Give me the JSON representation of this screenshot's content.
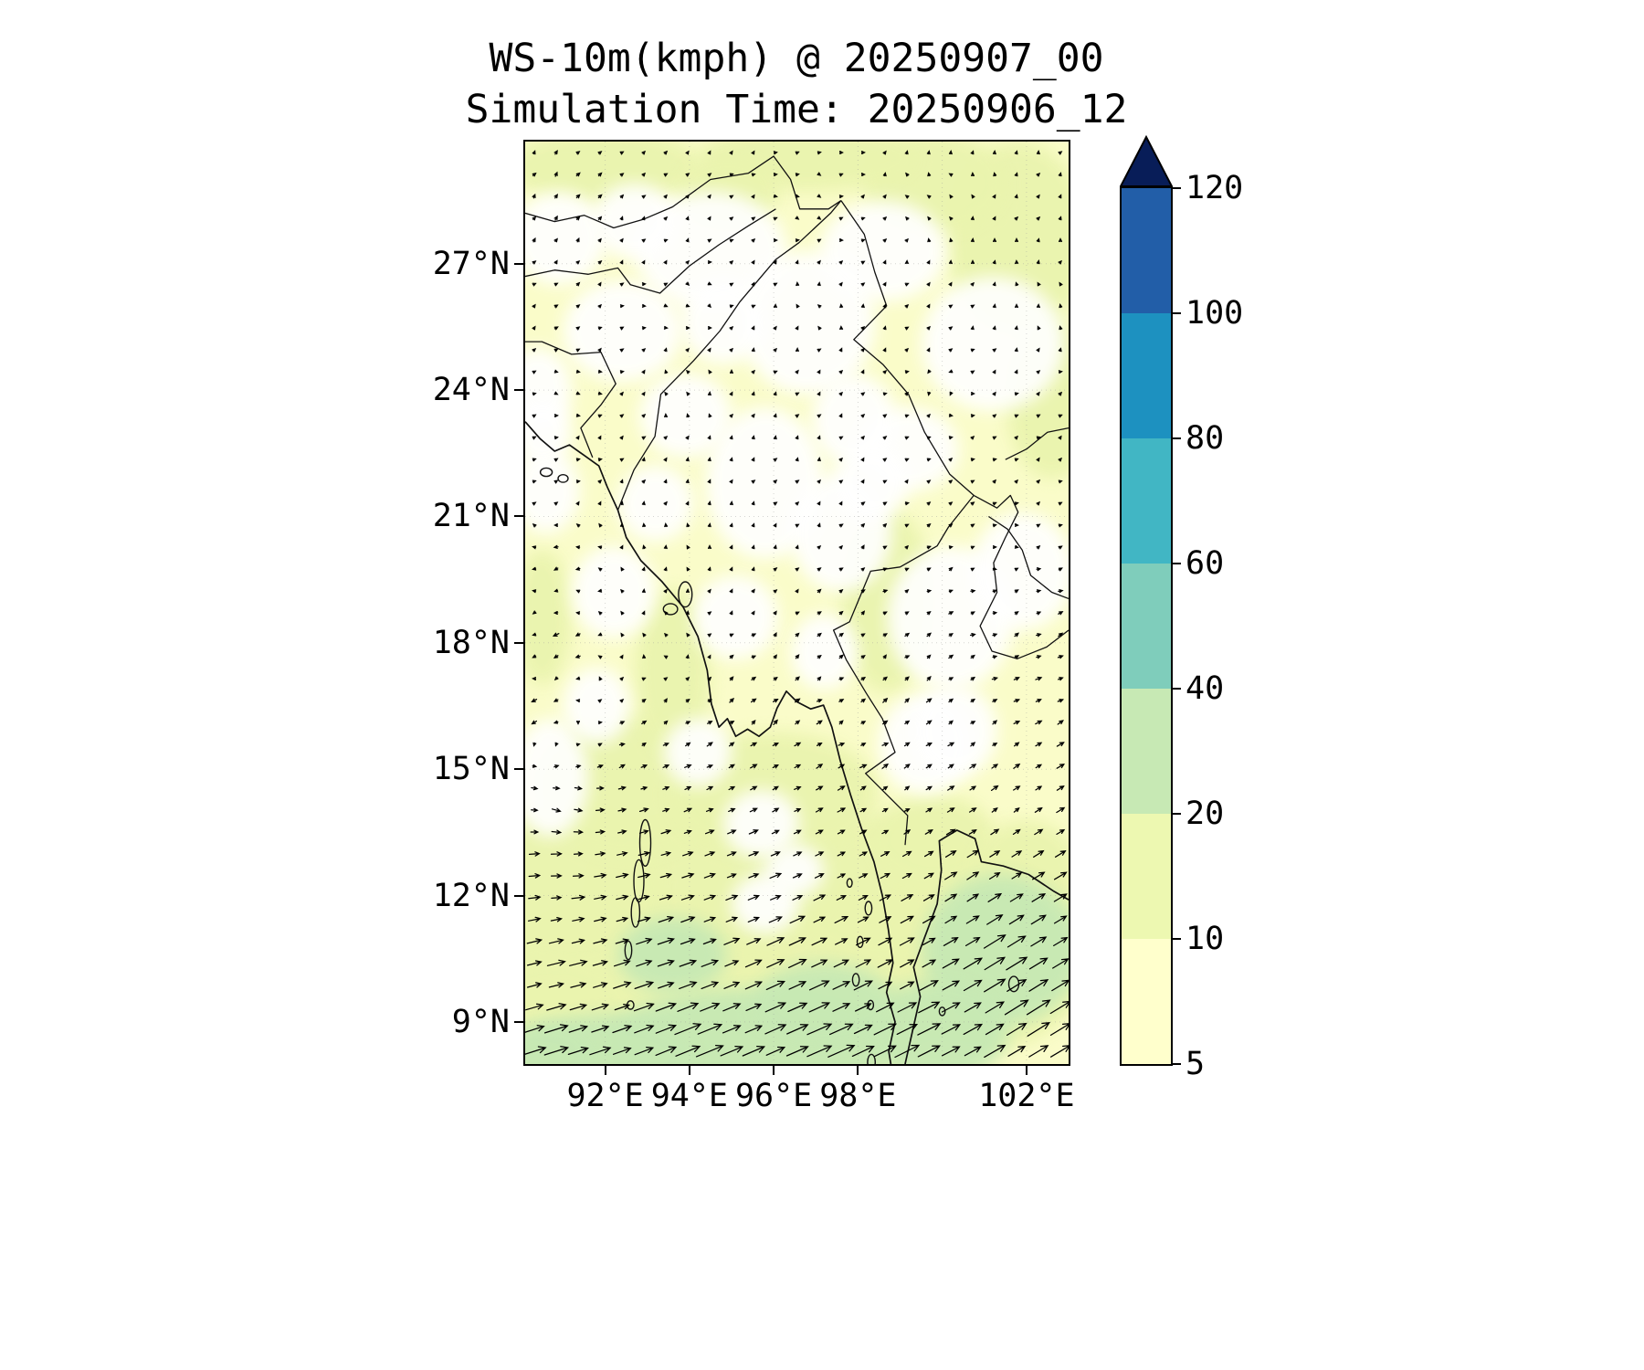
{
  "figure": {
    "title_line1": "WS-10m(kmph) @ 20250907_00",
    "title_line2": "Simulation Time: 20250906_12"
  },
  "chart_data": {
    "type": "heatmap",
    "subtype": "filled-contour map with wind quiver overlay",
    "title": "WS-10m(kmph) @ 20250907_00",
    "subtitle": "Simulation Time: 20250906_12",
    "variable": "10 m wind speed",
    "units": "kmph",
    "valid_time_label": "20250907_00",
    "simulation_time_label": "20250906_12",
    "lon_range": [
      90.1,
      103.0
    ],
    "lat_range": [
      8.0,
      29.9
    ],
    "grid_on": true,
    "grid_lons": [
      92,
      94,
      96,
      98,
      100,
      102
    ],
    "grid_lats": [
      27,
      24,
      21,
      18,
      15,
      12,
      9
    ],
    "x_ticks": [
      {
        "lon": 92,
        "label": "92°E"
      },
      {
        "lon": 94,
        "label": "94°E"
      },
      {
        "lon": 96,
        "label": "96°E"
      },
      {
        "lon": 98,
        "label": "98°E"
      },
      {
        "lon": 102,
        "label": "102°E"
      }
    ],
    "y_ticks": [
      {
        "lat": 27,
        "label": "27°N"
      },
      {
        "lat": 24,
        "label": "24°N"
      },
      {
        "lat": 21,
        "label": "21°N"
      },
      {
        "lat": 18,
        "label": "18°N"
      },
      {
        "lat": 15,
        "label": "15°N"
      },
      {
        "lat": 12,
        "label": "12°N"
      },
      {
        "lat": 9,
        "label": "9°N"
      }
    ],
    "colorbar": {
      "orientation": "vertical",
      "levels": [
        5,
        10,
        20,
        40,
        60,
        80,
        100,
        120
      ],
      "tick_labels": [
        "5",
        "10",
        "20",
        "40",
        "60",
        "80",
        "100",
        "120"
      ],
      "segment_colors_bottom_to_top": [
        "#ffffcc",
        "#edf8b1",
        "#c7e9b4",
        "#7fcdbb",
        "#41b6c4",
        "#1d91c0",
        "#225ea8"
      ],
      "extend_above_color": "#081d58",
      "extend": "max"
    },
    "level_colors": {
      "calm": "#ffffff",
      "base": "#fafcc9",
      "10-20": "#eaf4ae",
      "20-40": "#c7e9b4"
    },
    "wind_vectors_sample": [
      [
        91,
        8.3,
        19,
        6
      ],
      [
        94,
        8.3,
        22,
        9
      ],
      [
        97,
        8.5,
        23,
        10
      ],
      [
        99.5,
        8.8,
        20,
        10
      ],
      [
        102,
        9.3,
        19,
        12
      ],
      [
        91,
        10.3,
        13,
        3
      ],
      [
        93.5,
        10.4,
        15,
        5
      ],
      [
        96.5,
        10.4,
        15,
        7
      ],
      [
        99,
        10.4,
        11,
        6
      ],
      [
        101.5,
        10.8,
        16,
        10
      ],
      [
        91,
        12.4,
        9,
        0
      ],
      [
        93,
        12.7,
        9,
        2
      ],
      [
        95.5,
        12.4,
        8,
        3
      ],
      [
        98,
        12.4,
        6,
        3
      ],
      [
        100.7,
        12.2,
        9,
        6
      ],
      [
        91,
        14,
        6,
        -2
      ],
      [
        94,
        14,
        5,
        2
      ],
      [
        96.5,
        14,
        4,
        2
      ],
      [
        99,
        14,
        3,
        2
      ],
      [
        101.5,
        14,
        4,
        3
      ],
      [
        90.5,
        16.3,
        -5,
        -2
      ],
      [
        93,
        16,
        3,
        2
      ],
      [
        95.5,
        16,
        3,
        3
      ],
      [
        98,
        16,
        3,
        2
      ],
      [
        101,
        16,
        3,
        2
      ],
      [
        91,
        18,
        -5,
        -2
      ],
      [
        93.5,
        18,
        -2,
        1
      ],
      [
        96,
        18,
        2,
        2
      ],
      [
        98.5,
        18,
        2,
        2
      ],
      [
        101,
        18,
        3,
        1
      ],
      [
        91,
        20,
        -4,
        -1
      ],
      [
        94,
        20,
        -1,
        2
      ],
      [
        96.5,
        20,
        1,
        2
      ],
      [
        99,
        20,
        2,
        1
      ],
      [
        101.5,
        20,
        2,
        0
      ],
      [
        91,
        22,
        2,
        1
      ],
      [
        94,
        22,
        0,
        2
      ],
      [
        97,
        22,
        1,
        2
      ],
      [
        100,
        22,
        2,
        1
      ],
      [
        102.5,
        22,
        1,
        1
      ],
      [
        91,
        24,
        1,
        -1
      ],
      [
        94,
        24,
        -1,
        1
      ],
      [
        97,
        24,
        1,
        1
      ],
      [
        100,
        24,
        -1,
        -1
      ],
      [
        102.5,
        24,
        2,
        1
      ],
      [
        91,
        26,
        2,
        2
      ],
      [
        94,
        26,
        1,
        -1
      ],
      [
        97,
        26,
        -1,
        1
      ],
      [
        100,
        26,
        1,
        1
      ],
      [
        102.5,
        26,
        -1,
        2
      ],
      [
        91,
        28.5,
        2,
        3
      ],
      [
        94,
        28.5,
        1,
        2
      ],
      [
        97,
        28.5,
        2,
        -1
      ],
      [
        100,
        28.5,
        -2,
        1
      ],
      [
        102.5,
        28.5,
        1,
        2
      ]
    ],
    "shading_blobs": [
      [
        93,
        9.8,
        3.6,
        2.3,
        "10-20"
      ],
      [
        97,
        9.8,
        3.2,
        2.3,
        "10-20"
      ],
      [
        100.9,
        10.6,
        2.7,
        2.3,
        "10-20"
      ],
      [
        94.5,
        12.3,
        2.9,
        1.7,
        "10-20"
      ],
      [
        98.5,
        12.2,
        2.3,
        1.7,
        "10-20"
      ],
      [
        91.2,
        12.2,
        2.1,
        2.0,
        "10-20"
      ],
      [
        92.6,
        14.6,
        2.3,
        1.7,
        "10-20"
      ],
      [
        96,
        14.4,
        2.5,
        1.5,
        "10-20"
      ],
      [
        99.8,
        13.3,
        1.5,
        1.1,
        "10-20"
      ],
      [
        90.8,
        9,
        2,
        1.6,
        "10-20"
      ],
      [
        102,
        12.5,
        1.3,
        1.3,
        "10-20"
      ],
      [
        101.8,
        27.6,
        1.7,
        2.3,
        "10-20"
      ],
      [
        102.6,
        23.8,
        1.1,
        1.9,
        "10-20"
      ],
      [
        99.8,
        28.9,
        1.7,
        1.2,
        "10-20"
      ],
      [
        92,
        29.3,
        2.3,
        0.9,
        "10-20"
      ],
      [
        96.8,
        29.5,
        2.6,
        0.8,
        "10-20"
      ],
      [
        94.9,
        28.7,
        1.2,
        0.9,
        "10-20"
      ],
      [
        98.7,
        19,
        1.1,
        2.2,
        "10-20"
      ],
      [
        93.6,
        17.3,
        0.9,
        2.0,
        "10-20"
      ],
      [
        90.5,
        18.6,
        0.7,
        1.6,
        "10-20"
      ],
      [
        95.5,
        8.5,
        3.5,
        1.3,
        "20-40"
      ],
      [
        92,
        8.2,
        2.1,
        1.0,
        "20-40"
      ],
      [
        101.4,
        10.7,
        1.9,
        1.8,
        "20-40"
      ],
      [
        99.9,
        8.8,
        1.7,
        1.2,
        "20-40"
      ],
      [
        93.6,
        10.6,
        1.3,
        0.9,
        "20-40"
      ],
      [
        97.2,
        9.4,
        1.7,
        1.0,
        "20-40"
      ],
      [
        90.6,
        8.2,
        1.2,
        0.8,
        "20-40"
      ],
      [
        94.5,
        27.3,
        1.8,
        1.4,
        "calm"
      ],
      [
        96.8,
        25.6,
        1.6,
        1.7,
        "calm"
      ],
      [
        92.4,
        25.4,
        1.4,
        1.2,
        "calm"
      ],
      [
        98.6,
        27.3,
        1.5,
        1.2,
        "calm"
      ],
      [
        101.2,
        25.1,
        1.7,
        1.6,
        "calm"
      ],
      [
        95.8,
        21.8,
        1.4,
        1.8,
        "calm"
      ],
      [
        97.6,
        20.6,
        1.2,
        1.4,
        "calm"
      ],
      [
        100.2,
        18.6,
        1.5,
        1.7,
        "calm"
      ],
      [
        99.6,
        15.6,
        1.1,
        1.2,
        "calm"
      ],
      [
        92.2,
        19.2,
        1.0,
        1.1,
        "calm"
      ],
      [
        90.7,
        14.8,
        0.9,
        1.4,
        "calm"
      ],
      [
        95.1,
        18.6,
        1.0,
        1.0,
        "calm"
      ],
      [
        101.9,
        19.7,
        1.2,
        1.4,
        "calm"
      ],
      [
        93.9,
        23.4,
        1.1,
        1.0,
        "calm"
      ],
      [
        90.9,
        27.6,
        1.1,
        1.1,
        "calm"
      ],
      [
        99.2,
        22.6,
        1.2,
        1.0,
        "calm"
      ],
      [
        95.7,
        13.7,
        0.9,
        0.8,
        "calm"
      ],
      [
        95.8,
        11.8,
        0.8,
        0.7,
        "calm"
      ],
      [
        100.3,
        15.9,
        1.0,
        1.1,
        "calm"
      ],
      [
        92.7,
        28.0,
        1.0,
        0.9,
        "calm"
      ],
      [
        97.9,
        23.3,
        1.0,
        1.1,
        "calm"
      ],
      [
        90.6,
        21.6,
        0.8,
        1.0,
        "calm"
      ],
      [
        94.2,
        15.4,
        0.8,
        0.8,
        "calm"
      ],
      [
        97.2,
        17.8,
        0.8,
        0.9,
        "calm"
      ],
      [
        91.8,
        16.5,
        0.8,
        0.9,
        "calm"
      ],
      [
        96.5,
        12.6,
        0.7,
        0.6,
        "calm"
      ],
      [
        90.4,
        24,
        0.8,
        1.0,
        "calm"
      ],
      [
        93.2,
        21.3,
        0.9,
        0.9,
        "calm"
      ],
      [
        98.3,
        21.8,
        0.9,
        0.9,
        "calm"
      ],
      [
        94.8,
        25.6,
        1.0,
        1.0,
        "calm"
      ],
      [
        90.5,
        23,
        0.7,
        0.8,
        "calm"
      ]
    ],
    "coastlines": [
      [
        [
          90.1,
          23.25
        ],
        [
          90.45,
          22.85
        ],
        [
          90.8,
          22.55
        ],
        [
          91.15,
          22.7
        ],
        [
          91.5,
          22.45
        ],
        [
          91.85,
          22.2
        ],
        [
          92.05,
          21.7
        ],
        [
          92.3,
          21.15
        ],
        [
          92.5,
          20.5
        ],
        [
          92.85,
          19.95
        ],
        [
          93.35,
          19.45
        ],
        [
          93.85,
          18.85
        ],
        [
          94.2,
          18.15
        ],
        [
          94.42,
          17.35
        ],
        [
          94.52,
          16.55
        ],
        [
          94.7,
          16.0
        ],
        [
          94.9,
          16.2
        ],
        [
          95.1,
          15.78
        ],
        [
          95.38,
          15.95
        ],
        [
          95.65,
          15.78
        ],
        [
          95.92,
          16.0
        ],
        [
          96.08,
          16.45
        ],
        [
          96.3,
          16.85
        ],
        [
          96.55,
          16.6
        ],
        [
          96.88,
          16.43
        ],
        [
          97.18,
          16.52
        ],
        [
          97.38,
          16.0
        ],
        [
          97.58,
          15.2
        ],
        [
          97.82,
          14.4
        ],
        [
          98.08,
          13.6
        ],
        [
          98.38,
          12.8
        ],
        [
          98.58,
          12.0
        ],
        [
          98.72,
          11.2
        ],
        [
          98.83,
          10.4
        ],
        [
          98.68,
          9.7
        ],
        [
          98.88,
          9.0
        ],
        [
          98.73,
          8.3
        ],
        [
          98.78,
          8.0
        ]
      ],
      [
        [
          99.12,
          8.0
        ],
        [
          99.3,
          8.8
        ],
        [
          99.48,
          9.6
        ],
        [
          99.32,
          10.3
        ],
        [
          99.58,
          11.0
        ],
        [
          99.88,
          11.8
        ],
        [
          99.98,
          12.6
        ],
        [
          99.93,
          13.3
        ],
        [
          100.35,
          13.55
        ],
        [
          100.78,
          13.35
        ],
        [
          100.93,
          12.8
        ],
        [
          101.45,
          12.7
        ],
        [
          102.05,
          12.5
        ],
        [
          102.65,
          12.1
        ],
        [
          103.0,
          11.9
        ]
      ]
    ],
    "borders": [
      [
        [
          92.3,
          21.15
        ],
        [
          92.68,
          22.1
        ],
        [
          93.18,
          22.9
        ],
        [
          93.32,
          23.9
        ],
        [
          94.1,
          24.7
        ],
        [
          94.72,
          25.4
        ],
        [
          95.2,
          26.1
        ],
        [
          96.05,
          27.1
        ],
        [
          96.6,
          27.5
        ],
        [
          97.35,
          28.2
        ],
        [
          97.6,
          28.5
        ]
      ],
      [
        [
          97.6,
          28.5
        ],
        [
          98.15,
          27.7
        ],
        [
          98.4,
          26.8
        ],
        [
          98.68,
          26.0
        ],
        [
          97.9,
          25.2
        ],
        [
          98.6,
          24.6
        ],
        [
          99.2,
          23.9
        ],
        [
          99.58,
          23.0
        ],
        [
          100.18,
          22.0
        ],
        [
          100.75,
          21.5
        ]
      ],
      [
        [
          100.75,
          21.5
        ],
        [
          100.15,
          20.75
        ],
        [
          99.88,
          20.3
        ],
        [
          99.0,
          19.8
        ],
        [
          98.3,
          19.7
        ],
        [
          97.8,
          18.5
        ],
        [
          97.42,
          18.3
        ],
        [
          97.72,
          17.6
        ],
        [
          98.2,
          16.8
        ],
        [
          98.58,
          16.2
        ],
        [
          98.88,
          15.4
        ],
        [
          98.18,
          14.9
        ],
        [
          99.18,
          13.9
        ],
        [
          99.12,
          13.2
        ]
      ],
      [
        [
          100.75,
          21.5
        ],
        [
          101.3,
          21.2
        ],
        [
          101.62,
          21.5
        ],
        [
          101.8,
          21.1
        ],
        [
          101.5,
          20.5
        ],
        [
          101.22,
          19.9
        ],
        [
          101.3,
          19.2
        ],
        [
          100.9,
          18.4
        ],
        [
          101.18,
          17.8
        ],
        [
          101.78,
          17.62
        ],
        [
          102.48,
          17.9
        ],
        [
          103.0,
          18.3
        ]
      ],
      [
        [
          90.1,
          28.2
        ],
        [
          90.8,
          28.0
        ],
        [
          91.5,
          28.15
        ],
        [
          92.2,
          27.85
        ],
        [
          92.9,
          28.05
        ],
        [
          93.6,
          28.35
        ],
        [
          94.5,
          29.0
        ],
        [
          95.4,
          29.15
        ],
        [
          96.0,
          29.55
        ],
        [
          96.4,
          29.0
        ],
        [
          96.62,
          28.3
        ],
        [
          97.3,
          28.3
        ],
        [
          97.6,
          28.5
        ]
      ],
      [
        [
          90.1,
          26.7
        ],
        [
          90.8,
          26.85
        ],
        [
          91.6,
          26.75
        ],
        [
          92.3,
          26.9
        ],
        [
          92.6,
          26.5
        ],
        [
          93.3,
          26.3
        ],
        [
          94.0,
          26.95
        ],
        [
          94.7,
          27.45
        ],
        [
          95.4,
          27.9
        ],
        [
          96.05,
          28.3
        ]
      ],
      [
        [
          91.7,
          22.4
        ],
        [
          91.42,
          23.1
        ],
        [
          91.9,
          23.65
        ],
        [
          92.25,
          24.15
        ],
        [
          91.9,
          24.9
        ],
        [
          91.2,
          24.85
        ],
        [
          90.5,
          25.15
        ],
        [
          90.1,
          25.15
        ]
      ],
      [
        [
          101.5,
          22.35
        ],
        [
          102.0,
          22.6
        ],
        [
          102.5,
          23.0
        ],
        [
          103.0,
          23.1
        ]
      ],
      [
        [
          101.1,
          21.0
        ],
        [
          101.55,
          20.7
        ],
        [
          101.9,
          20.2
        ],
        [
          102.1,
          19.6
        ],
        [
          102.6,
          19.2
        ],
        [
          103.0,
          19.05
        ]
      ]
    ],
    "islands": [
      [
        92.95,
        13.25,
        0.13,
        0.55
      ],
      [
        92.8,
        12.35,
        0.12,
        0.5
      ],
      [
        92.72,
        11.6,
        0.1,
        0.35
      ],
      [
        92.55,
        10.7,
        0.08,
        0.22
      ],
      [
        92.6,
        9.4,
        0.08,
        0.1
      ],
      [
        93.9,
        19.15,
        0.16,
        0.3
      ],
      [
        93.55,
        18.8,
        0.17,
        0.13
      ],
      [
        98.25,
        11.7,
        0.08,
        0.16
      ],
      [
        98.05,
        10.9,
        0.07,
        0.13
      ],
      [
        97.95,
        10.0,
        0.08,
        0.15
      ],
      [
        98.3,
        9.4,
        0.07,
        0.11
      ],
      [
        97.8,
        12.3,
        0.06,
        0.1
      ],
      [
        98.32,
        8.05,
        0.09,
        0.18
      ],
      [
        101.7,
        9.9,
        0.12,
        0.18
      ],
      [
        90.6,
        22.05,
        0.14,
        0.1
      ],
      [
        91.0,
        21.9,
        0.12,
        0.09
      ],
      [
        100.0,
        9.25,
        0.07,
        0.1
      ]
    ]
  }
}
